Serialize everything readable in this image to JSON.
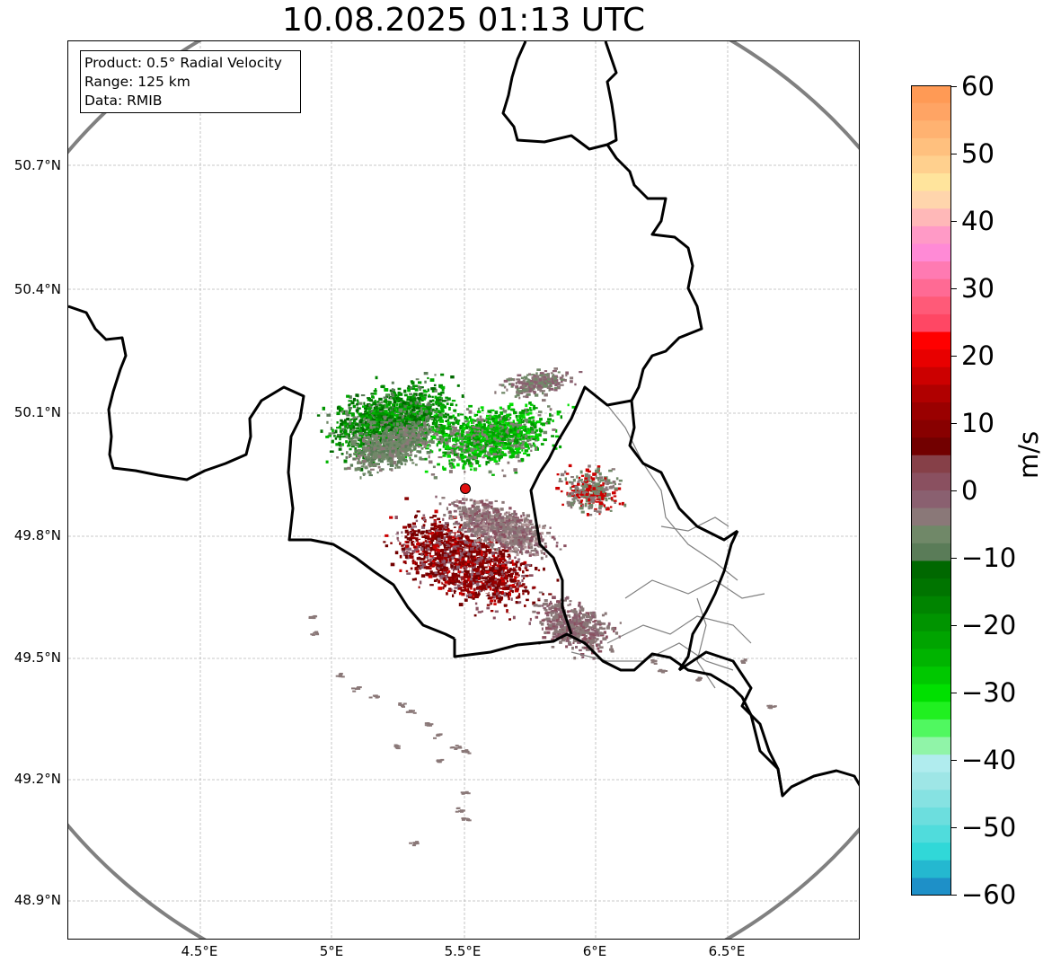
{
  "title": "10.08.2025 01:13 UTC",
  "info": {
    "product": "Product: 0.5° Radial Velocity",
    "range": "Range: 125 km",
    "source": "Data: RMIB"
  },
  "axes": {
    "lat_ticks": [
      "50.7°N",
      "50.4°N",
      "50.1°N",
      "49.8°N",
      "49.5°N",
      "49.2°N",
      "48.9°N"
    ],
    "lon_ticks": [
      "4.5°E",
      "5°E",
      "5.5°E",
      "6°E",
      "6.5°E"
    ]
  },
  "colorbar": {
    "unit": "m/s",
    "ticks": [
      "60",
      "50",
      "40",
      "30",
      "20",
      "10",
      "0",
      "−10",
      "−20",
      "−30",
      "−40",
      "−50",
      "−60"
    ],
    "colors_top_to_bottom": [
      "#ff9a55",
      "#ffa464",
      "#ffb271",
      "#ffc07e",
      "#ffd08e",
      "#ffe49c",
      "#ffd5ac",
      "#ffb8b8",
      "#ff9ac6",
      "#ff8ad6",
      "#ff7ab2",
      "#ff6a94",
      "#ff5a78",
      "#ff4764",
      "#ff0000",
      "#e80000",
      "#cc0000",
      "#b00000",
      "#9a0000",
      "#880000",
      "#720000",
      "#864048",
      "#8a5060",
      "#8a6070",
      "#8a7878",
      "#708868",
      "#5a7c58",
      "#006800",
      "#007400",
      "#008400",
      "#009400",
      "#00a400",
      "#00b400",
      "#00c800",
      "#00e000",
      "#20f020",
      "#50f860",
      "#90f4a8",
      "#b0ecee",
      "#9ee6e6",
      "#86e2e2",
      "#6cdede",
      "#50dcdc",
      "#30d8d8",
      "#24b8d0",
      "#1e90c8"
    ],
    "value_range": [
      -60,
      60
    ]
  },
  "map": {
    "radar_site": {
      "lon": 5.505,
      "lat": 49.914
    },
    "extent": {
      "lon_min": 4.0,
      "lon_max": 7.0,
      "lat_min": 48.8,
      "lat_max": 51.0
    },
    "colors": {
      "border": "#000000",
      "region": "#808080",
      "range_ring": "#808080",
      "grid": "#b0b0b0",
      "site": "#e01010"
    }
  }
}
